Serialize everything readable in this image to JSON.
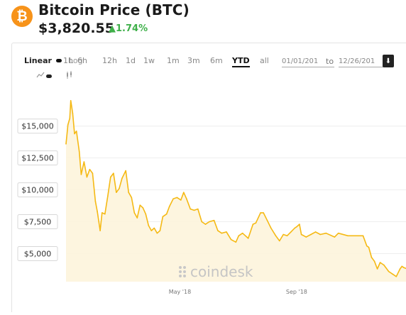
{
  "header": {
    "logo_glyph": "₿",
    "title": "Bitcoin Price (BTC)",
    "price": "$3,820.55",
    "change": "▲1.74%"
  },
  "controls": {
    "scale_linear": "Linear",
    "scale_log": "Log",
    "ranges": [
      "1h",
      "6h",
      "12h",
      "1d",
      "1w",
      "1m",
      "3m",
      "6m",
      "YTD",
      "all"
    ],
    "active_range": "YTD",
    "date_from": "01/01/201",
    "date_to_label": "to",
    "date_to": "12/26/201",
    "download_icon": "download-icon"
  },
  "watermark": "coindesk",
  "colors": {
    "line": "#f5b914",
    "fill": "#fdf4dc",
    "accent": "#f7931a",
    "positive": "#3fb04a"
  },
  "chart_data": {
    "type": "area",
    "title": "Bitcoin Price (BTC)",
    "xlabel": "",
    "ylabel": "",
    "ylim": [
      2800,
      17600
    ],
    "xlim": [
      "2018-01-01",
      "2018-12-26"
    ],
    "y_ticks": [
      "$5,000",
      "$7,500",
      "$10,000",
      "$12,500",
      "$15,000"
    ],
    "y_tick_values": [
      5000,
      7500,
      10000,
      12500,
      15000
    ],
    "x_ticks": [
      "May '18",
      "Sep '18"
    ],
    "x_tick_dates": [
      "2018-05-01",
      "2018-09-01"
    ],
    "grid": true,
    "series": [
      {
        "points": [
          [
            "2018-01-01",
            13600
          ],
          [
            "2018-01-03",
            15100
          ],
          [
            "2018-01-05",
            15600
          ],
          [
            "2018-01-06",
            17000
          ],
          [
            "2018-01-08",
            16000
          ],
          [
            "2018-01-10",
            14400
          ],
          [
            "2018-01-12",
            14600
          ],
          [
            "2018-01-15",
            13000
          ],
          [
            "2018-01-17",
            11200
          ],
          [
            "2018-01-20",
            12200
          ],
          [
            "2018-01-23",
            11000
          ],
          [
            "2018-01-26",
            11600
          ],
          [
            "2018-01-29",
            11300
          ],
          [
            "2018-02-01",
            9100
          ],
          [
            "2018-02-03",
            8300
          ],
          [
            "2018-02-06",
            6800
          ],
          [
            "2018-02-08",
            8200
          ],
          [
            "2018-02-11",
            8100
          ],
          [
            "2018-02-14",
            9500
          ],
          [
            "2018-02-17",
            11000
          ],
          [
            "2018-02-20",
            11300
          ],
          [
            "2018-02-23",
            9800
          ],
          [
            "2018-02-26",
            10100
          ],
          [
            "2018-03-01",
            10900
          ],
          [
            "2018-03-05",
            11500
          ],
          [
            "2018-03-08",
            9800
          ],
          [
            "2018-03-11",
            9400
          ],
          [
            "2018-03-14",
            8200
          ],
          [
            "2018-03-17",
            7800
          ],
          [
            "2018-03-20",
            8800
          ],
          [
            "2018-03-23",
            8600
          ],
          [
            "2018-03-26",
            8100
          ],
          [
            "2018-03-29",
            7200
          ],
          [
            "2018-04-01",
            6800
          ],
          [
            "2018-04-04",
            7000
          ],
          [
            "2018-04-07",
            6600
          ],
          [
            "2018-04-10",
            6800
          ],
          [
            "2018-04-13",
            7900
          ],
          [
            "2018-04-17",
            8100
          ],
          [
            "2018-04-20",
            8700
          ],
          [
            "2018-04-24",
            9300
          ],
          [
            "2018-04-28",
            9400
          ],
          [
            "2018-05-02",
            9200
          ],
          [
            "2018-05-05",
            9800
          ],
          [
            "2018-05-08",
            9300
          ],
          [
            "2018-05-12",
            8500
          ],
          [
            "2018-05-16",
            8400
          ],
          [
            "2018-05-20",
            8500
          ],
          [
            "2018-05-24",
            7500
          ],
          [
            "2018-05-28",
            7300
          ],
          [
            "2018-06-01",
            7500
          ],
          [
            "2018-06-06",
            7600
          ],
          [
            "2018-06-10",
            6800
          ],
          [
            "2018-06-14",
            6600
          ],
          [
            "2018-06-19",
            6700
          ],
          [
            "2018-06-24",
            6100
          ],
          [
            "2018-06-29",
            5900
          ],
          [
            "2018-07-02",
            6400
          ],
          [
            "2018-07-06",
            6600
          ],
          [
            "2018-07-12",
            6200
          ],
          [
            "2018-07-17",
            7300
          ],
          [
            "2018-07-20",
            7400
          ],
          [
            "2018-07-25",
            8200
          ],
          [
            "2018-07-28",
            8200
          ],
          [
            "2018-08-01",
            7600
          ],
          [
            "2018-08-05",
            7000
          ],
          [
            "2018-08-10",
            6400
          ],
          [
            "2018-08-14",
            6000
          ],
          [
            "2018-08-18",
            6500
          ],
          [
            "2018-08-22",
            6400
          ],
          [
            "2018-08-26",
            6700
          ],
          [
            "2018-08-30",
            7000
          ],
          [
            "2018-09-01",
            7100
          ],
          [
            "2018-09-04",
            7300
          ],
          [
            "2018-09-06",
            6500
          ],
          [
            "2018-09-11",
            6300
          ],
          [
            "2018-09-16",
            6500
          ],
          [
            "2018-09-21",
            6700
          ],
          [
            "2018-09-26",
            6500
          ],
          [
            "2018-10-02",
            6600
          ],
          [
            "2018-10-11",
            6300
          ],
          [
            "2018-10-15",
            6600
          ],
          [
            "2018-10-25",
            6400
          ],
          [
            "2018-11-05",
            6400
          ],
          [
            "2018-11-10",
            6400
          ],
          [
            "2018-11-14",
            5600
          ],
          [
            "2018-11-16",
            5500
          ],
          [
            "2018-11-19",
            4700
          ],
          [
            "2018-11-22",
            4400
          ],
          [
            "2018-11-25",
            3800
          ],
          [
            "2018-11-28",
            4300
          ],
          [
            "2018-12-02",
            4100
          ],
          [
            "2018-12-07",
            3600
          ],
          [
            "2018-12-11",
            3400
          ],
          [
            "2018-12-15",
            3200
          ],
          [
            "2018-12-19",
            3800
          ],
          [
            "2018-12-21",
            4000
          ],
          [
            "2018-12-23",
            3900
          ],
          [
            "2018-12-26",
            3820
          ]
        ]
      }
    ]
  }
}
